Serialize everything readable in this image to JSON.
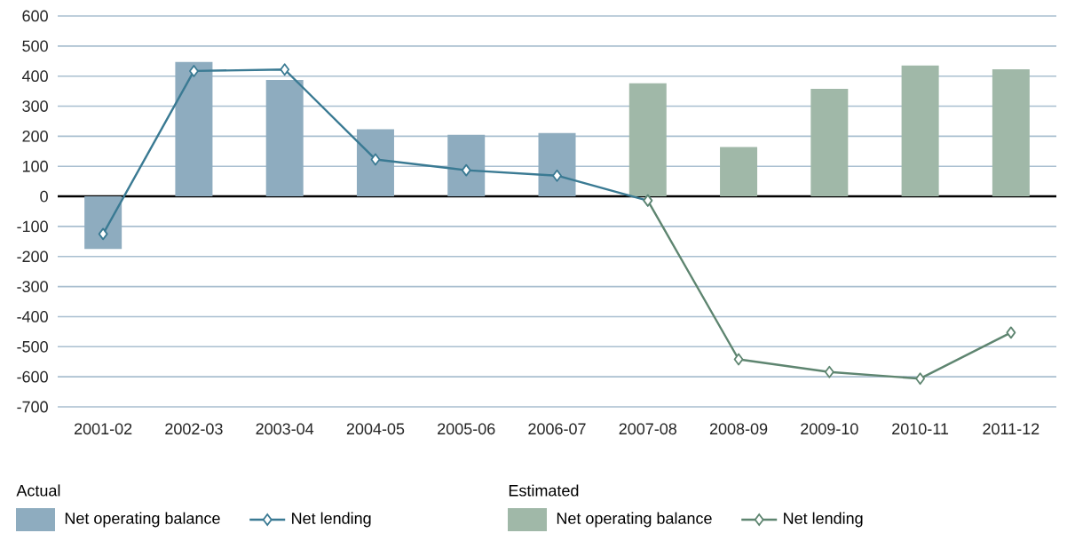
{
  "chart_data": {
    "type": "bar",
    "categories": [
      "2001-02",
      "2002-03",
      "2003-04",
      "2004-05",
      "2005-06",
      "2006-07",
      "2007-08",
      "2008-09",
      "2009-10",
      "2010-11",
      "2011-12"
    ],
    "series": [
      {
        "name": "Net operating balance",
        "color": "#8eacbf",
        "values": [
          -175,
          447,
          387,
          223,
          205,
          211,
          null,
          null,
          null,
          null,
          null
        ]
      },
      {
        "name": "Net lending",
        "type": "line",
        "color": "#3a7a93",
        "values": [
          -125,
          417,
          422,
          123,
          87,
          69,
          -14,
          null,
          null,
          null,
          null
        ]
      },
      {
        "name": "Net operating balance",
        "color": "#a0b8a8",
        "values": [
          null,
          null,
          null,
          null,
          null,
          null,
          376,
          164,
          358,
          435,
          423
        ]
      },
      {
        "name": "Net lending",
        "type": "line",
        "color": "#5e8570",
        "values": [
          null,
          null,
          null,
          null,
          null,
          null,
          -14,
          -542,
          -584,
          -606,
          -453
        ]
      }
    ],
    "annotations": [
      "Actual",
      "Estimated"
    ],
    "ylim": [
      -700,
      600
    ],
    "yticks": [
      -700,
      -600,
      -500,
      -400,
      -300,
      -200,
      -100,
      0,
      100,
      200,
      300,
      400,
      500,
      600
    ],
    "grid": "y",
    "legend": "bottom",
    "marker": "diamond",
    "line_style": "solid"
  }
}
